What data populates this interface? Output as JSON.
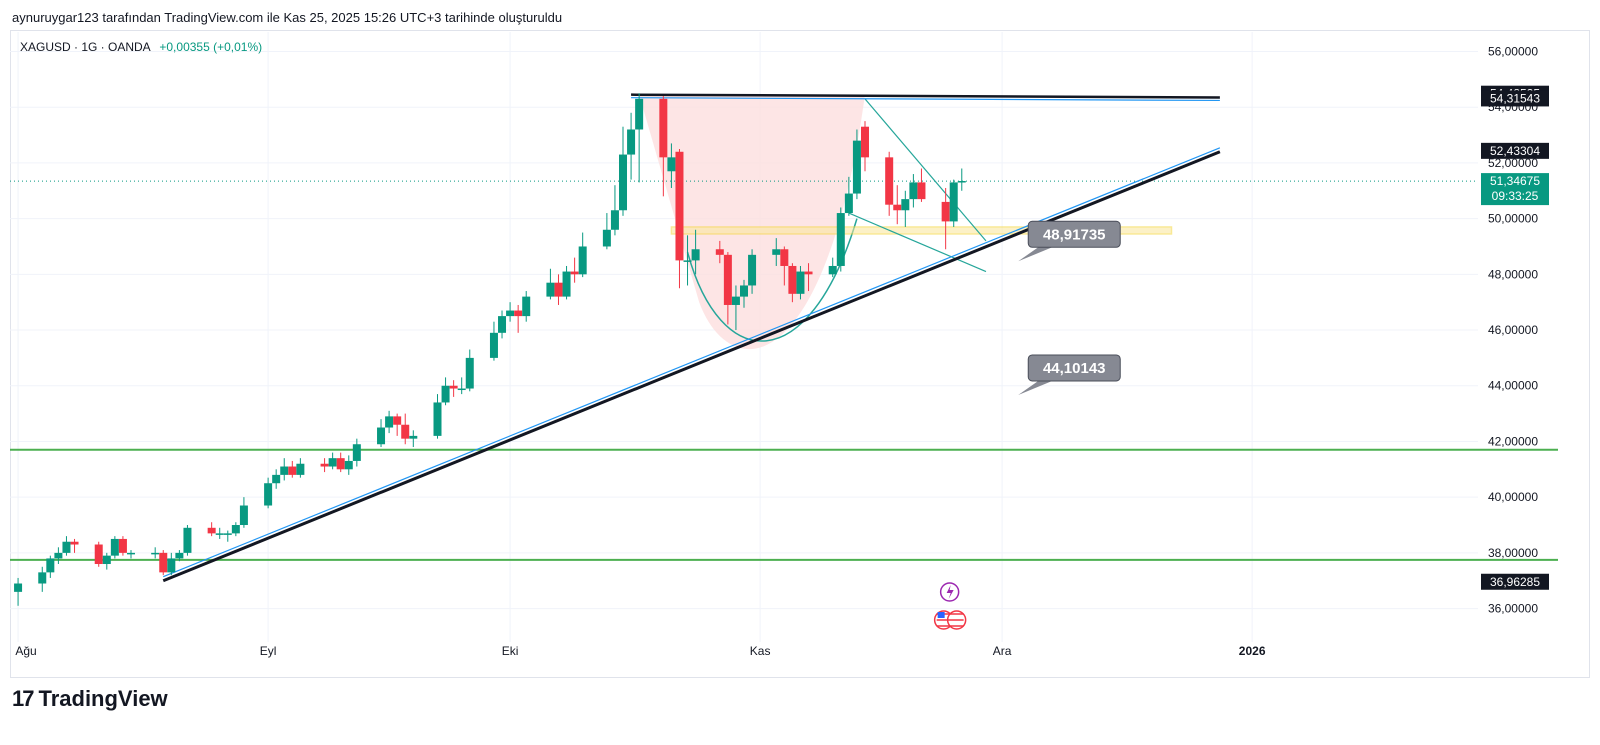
{
  "header": {
    "text": "aynuruygar123 tarafından TradingView.com ile Kas 25, 2025 15:26 UTC+3 tarihinde oluşturuldu"
  },
  "symbol": {
    "name": "XAGUSD · 1G · OANDA",
    "change": "+0,00355 (+0,01%)"
  },
  "footer": {
    "logo_mark": "17",
    "logo_text": "TradingView"
  },
  "colors": {
    "up": "#089981",
    "down": "#f23645",
    "trend": "#131722",
    "channel": "#2196f3",
    "support": "#4caf50",
    "zone": "#fbe79a",
    "cup": "#fcdede",
    "callout": "#868993"
  },
  "chart_data": {
    "type": "candlestick",
    "y_axis": {
      "min": 34.8,
      "max": 56.7,
      "tick_labels": [
        "56,00000",
        "54,00000",
        "52,00000",
        "50,00000",
        "48,00000",
        "46,00000",
        "44,00000",
        "42,00000",
        "40,00000",
        "38,00000",
        "36,00000"
      ],
      "tick_values": [
        56,
        54,
        52,
        50,
        48,
        46,
        44,
        42,
        40,
        38,
        36
      ]
    },
    "x_axis": {
      "labels": [
        "Ağu",
        "Eyl",
        "Eki",
        "Kas",
        "Ara",
        "2026"
      ],
      "label_dates": [
        "2025-08-01",
        "2025-09-01",
        "2025-10-01",
        "2025-11-01",
        "2025-12-01",
        "2026-01-01"
      ],
      "range": [
        "2025-07-31",
        "2026-01-29"
      ]
    },
    "price_tags": [
      {
        "text": "54,48525",
        "value": 54.485,
        "style": "dark"
      },
      {
        "text": "54,31543",
        "value": 54.315,
        "style": "dark"
      },
      {
        "text": "52,43304",
        "value": 52.433,
        "style": "dark"
      },
      {
        "text": "51,34675",
        "value": 51.347,
        "style": "last",
        "sub": "09:33:25"
      },
      {
        "text": "36,96285",
        "value": 36.963,
        "style": "dark"
      }
    ],
    "last_price": 51.347,
    "callouts": [
      {
        "text": "48,91735",
        "anchor": [
          "2025-12-03",
          48.9
        ]
      },
      {
        "text": "44,10143",
        "anchor": [
          "2025-12-03",
          44.1
        ]
      }
    ],
    "support_lines": [
      41.7,
      37.75
    ],
    "trendline": {
      "from": [
        "2025-08-19",
        37.0
      ],
      "to": [
        "2025-12-28",
        52.4
      ]
    },
    "resistance": {
      "from": [
        "2025-10-16",
        54.45
      ],
      "to": [
        "2025-12-28",
        54.35
      ]
    },
    "zone": {
      "from": [
        "2025-10-21",
        49.45
      ],
      "to": [
        "2025-12-22",
        49.7
      ]
    },
    "candles": [
      {
        "d": "2025-08-01",
        "o": 36.6,
        "h": 37.1,
        "l": 36.1,
        "c": 36.9
      },
      {
        "d": "2025-08-04",
        "o": 36.9,
        "h": 37.5,
        "l": 36.6,
        "c": 37.3
      },
      {
        "d": "2025-08-05",
        "o": 37.3,
        "h": 37.9,
        "l": 37.1,
        "c": 37.8
      },
      {
        "d": "2025-08-06",
        "o": 37.8,
        "h": 38.2,
        "l": 37.6,
        "c": 38.0
      },
      {
        "d": "2025-08-07",
        "o": 38.0,
        "h": 38.6,
        "l": 37.9,
        "c": 38.4
      },
      {
        "d": "2025-08-08",
        "o": 38.4,
        "h": 38.5,
        "l": 38.0,
        "c": 38.3
      },
      {
        "d": "2025-08-11",
        "o": 38.3,
        "h": 38.4,
        "l": 37.5,
        "c": 37.6
      },
      {
        "d": "2025-08-12",
        "o": 37.6,
        "h": 38.0,
        "l": 37.4,
        "c": 37.9
      },
      {
        "d": "2025-08-13",
        "o": 37.9,
        "h": 38.6,
        "l": 37.8,
        "c": 38.5
      },
      {
        "d": "2025-08-14",
        "o": 38.5,
        "h": 38.6,
        "l": 37.9,
        "c": 38.0
      },
      {
        "d": "2025-08-15",
        "o": 38.0,
        "h": 38.1,
        "l": 37.8,
        "c": 38.0
      },
      {
        "d": "2025-08-18",
        "o": 38.0,
        "h": 38.2,
        "l": 37.8,
        "c": 38.0
      },
      {
        "d": "2025-08-19",
        "o": 38.0,
        "h": 38.1,
        "l": 37.2,
        "c": 37.3
      },
      {
        "d": "2025-08-20",
        "o": 37.3,
        "h": 38.0,
        "l": 37.2,
        "c": 37.8
      },
      {
        "d": "2025-08-21",
        "o": 37.8,
        "h": 38.1,
        "l": 37.7,
        "c": 38.0
      },
      {
        "d": "2025-08-22",
        "o": 38.0,
        "h": 39.0,
        "l": 37.9,
        "c": 38.9
      },
      {
        "d": "2025-08-25",
        "o": 38.9,
        "h": 39.1,
        "l": 38.6,
        "c": 38.7
      },
      {
        "d": "2025-08-26",
        "o": 38.7,
        "h": 38.9,
        "l": 38.5,
        "c": 38.7
      },
      {
        "d": "2025-08-27",
        "o": 38.7,
        "h": 38.8,
        "l": 38.4,
        "c": 38.7
      },
      {
        "d": "2025-08-28",
        "o": 38.7,
        "h": 39.1,
        "l": 38.6,
        "c": 39.0
      },
      {
        "d": "2025-08-29",
        "o": 39.0,
        "h": 40.0,
        "l": 38.9,
        "c": 39.7
      },
      {
        "d": "2025-09-01",
        "o": 39.7,
        "h": 40.7,
        "l": 39.6,
        "c": 40.5
      },
      {
        "d": "2025-09-02",
        "o": 40.5,
        "h": 41.0,
        "l": 40.3,
        "c": 40.8
      },
      {
        "d": "2025-09-03",
        "o": 40.8,
        "h": 41.4,
        "l": 40.6,
        "c": 41.1
      },
      {
        "d": "2025-09-04",
        "o": 41.1,
        "h": 41.3,
        "l": 40.7,
        "c": 40.8
      },
      {
        "d": "2025-09-05",
        "o": 40.8,
        "h": 41.4,
        "l": 40.7,
        "c": 41.2
      },
      {
        "d": "2025-09-08",
        "o": 41.2,
        "h": 41.4,
        "l": 40.9,
        "c": 41.1
      },
      {
        "d": "2025-09-09",
        "o": 41.1,
        "h": 41.6,
        "l": 41.0,
        "c": 41.4
      },
      {
        "d": "2025-09-10",
        "o": 41.4,
        "h": 41.6,
        "l": 40.9,
        "c": 41.0
      },
      {
        "d": "2025-09-11",
        "o": 41.0,
        "h": 41.5,
        "l": 40.8,
        "c": 41.3
      },
      {
        "d": "2025-09-12",
        "o": 41.3,
        "h": 42.1,
        "l": 41.1,
        "c": 41.9
      },
      {
        "d": "2025-09-15",
        "o": 41.9,
        "h": 42.8,
        "l": 41.8,
        "c": 42.5
      },
      {
        "d": "2025-09-16",
        "o": 42.5,
        "h": 43.1,
        "l": 42.3,
        "c": 42.9
      },
      {
        "d": "2025-09-17",
        "o": 42.9,
        "h": 43.0,
        "l": 42.2,
        "c": 42.6
      },
      {
        "d": "2025-09-18",
        "o": 42.6,
        "h": 43.0,
        "l": 41.9,
        "c": 42.1
      },
      {
        "d": "2025-09-19",
        "o": 42.1,
        "h": 42.4,
        "l": 41.8,
        "c": 42.2
      },
      {
        "d": "2025-09-22",
        "o": 42.2,
        "h": 43.7,
        "l": 42.1,
        "c": 43.4
      },
      {
        "d": "2025-09-23",
        "o": 43.4,
        "h": 44.3,
        "l": 43.3,
        "c": 44.0
      },
      {
        "d": "2025-09-24",
        "o": 44.0,
        "h": 44.2,
        "l": 43.6,
        "c": 43.9
      },
      {
        "d": "2025-09-25",
        "o": 43.9,
        "h": 44.3,
        "l": 43.7,
        "c": 43.9
      },
      {
        "d": "2025-09-26",
        "o": 43.9,
        "h": 45.3,
        "l": 43.8,
        "c": 45.0
      },
      {
        "d": "2025-09-29",
        "o": 45.0,
        "h": 46.3,
        "l": 44.9,
        "c": 45.9
      },
      {
        "d": "2025-09-30",
        "o": 45.9,
        "h": 46.7,
        "l": 45.7,
        "c": 46.5
      },
      {
        "d": "2025-10-01",
        "o": 46.5,
        "h": 47.0,
        "l": 46.3,
        "c": 46.7
      },
      {
        "d": "2025-10-02",
        "o": 46.7,
        "h": 46.9,
        "l": 45.9,
        "c": 46.5
      },
      {
        "d": "2025-10-03",
        "o": 46.5,
        "h": 47.4,
        "l": 46.3,
        "c": 47.2
      },
      {
        "d": "2025-10-06",
        "o": 47.2,
        "h": 48.2,
        "l": 47.1,
        "c": 47.7
      },
      {
        "d": "2025-10-07",
        "o": 47.7,
        "h": 48.0,
        "l": 46.9,
        "c": 47.2
      },
      {
        "d": "2025-10-08",
        "o": 47.2,
        "h": 48.3,
        "l": 47.1,
        "c": 48.1
      },
      {
        "d": "2025-10-09",
        "o": 48.1,
        "h": 48.6,
        "l": 47.7,
        "c": 48.0
      },
      {
        "d": "2025-10-10",
        "o": 48.0,
        "h": 49.5,
        "l": 47.9,
        "c": 49.0
      },
      {
        "d": "2025-10-13",
        "o": 49.0,
        "h": 50.2,
        "l": 48.9,
        "c": 49.6
      },
      {
        "d": "2025-10-14",
        "o": 49.6,
        "h": 51.2,
        "l": 49.4,
        "c": 50.3
      },
      {
        "d": "2025-10-15",
        "o": 50.3,
        "h": 53.3,
        "l": 50.1,
        "c": 52.3
      },
      {
        "d": "2025-10-16",
        "o": 52.3,
        "h": 53.8,
        "l": 51.4,
        "c": 53.2
      },
      {
        "d": "2025-10-17",
        "o": 53.2,
        "h": 54.5,
        "l": 51.3,
        "c": 54.3
      },
      {
        "d": "2025-10-20",
        "o": 54.3,
        "h": 54.4,
        "l": 50.8,
        "c": 52.2
      },
      {
        "d": "2025-10-21",
        "o": 51.7,
        "h": 52.7,
        "l": 51.1,
        "c": 52.2
      },
      {
        "d": "2025-10-22",
        "o": 52.4,
        "h": 52.5,
        "l": 47.5,
        "c": 48.5
      },
      {
        "d": "2025-10-23",
        "o": 48.5,
        "h": 49.4,
        "l": 47.6,
        "c": 48.5
      },
      {
        "d": "2025-10-24",
        "o": 48.5,
        "h": 49.6,
        "l": 48.0,
        "c": 48.9
      },
      {
        "d": "2025-10-27",
        "o": 48.9,
        "h": 49.2,
        "l": 48.4,
        "c": 48.7
      },
      {
        "d": "2025-10-28",
        "o": 48.7,
        "h": 48.8,
        "l": 46.2,
        "c": 46.9
      },
      {
        "d": "2025-10-29",
        "o": 46.9,
        "h": 47.6,
        "l": 46.0,
        "c": 47.2
      },
      {
        "d": "2025-10-30",
        "o": 47.2,
        "h": 47.8,
        "l": 46.8,
        "c": 47.6
      },
      {
        "d": "2025-10-31",
        "o": 47.6,
        "h": 48.9,
        "l": 47.3,
        "c": 48.7
      },
      {
        "d": "2025-11-03",
        "o": 48.7,
        "h": 49.3,
        "l": 48.3,
        "c": 48.9
      },
      {
        "d": "2025-11-04",
        "o": 48.9,
        "h": 49.0,
        "l": 47.6,
        "c": 48.3
      },
      {
        "d": "2025-11-05",
        "o": 48.3,
        "h": 48.4,
        "l": 47.0,
        "c": 47.3
      },
      {
        "d": "2025-11-06",
        "o": 47.3,
        "h": 48.3,
        "l": 47.1,
        "c": 48.1
      },
      {
        "d": "2025-11-07",
        "o": 48.1,
        "h": 48.4,
        "l": 47.4,
        "c": 48.0
      },
      {
        "d": "2025-11-10",
        "o": 48.0,
        "h": 48.6,
        "l": 47.9,
        "c": 48.3
      },
      {
        "d": "2025-11-11",
        "o": 48.3,
        "h": 50.4,
        "l": 48.1,
        "c": 50.2
      },
      {
        "d": "2025-11-12",
        "o": 50.2,
        "h": 51.5,
        "l": 50.1,
        "c": 50.9
      },
      {
        "d": "2025-11-13",
        "o": 50.9,
        "h": 53.2,
        "l": 50.7,
        "c": 52.8
      },
      {
        "d": "2025-11-14",
        "o": 53.3,
        "h": 53.5,
        "l": 51.7,
        "c": 52.2
      },
      {
        "d": "2025-11-17",
        "o": 52.2,
        "h": 52.4,
        "l": 50.1,
        "c": 50.5
      },
      {
        "d": "2025-11-18",
        "o": 50.5,
        "h": 51.2,
        "l": 49.8,
        "c": 50.3
      },
      {
        "d": "2025-11-19",
        "o": 50.3,
        "h": 51.0,
        "l": 49.7,
        "c": 50.7
      },
      {
        "d": "2025-11-20",
        "o": 50.7,
        "h": 51.6,
        "l": 50.4,
        "c": 51.3
      },
      {
        "d": "2025-11-21",
        "o": 51.3,
        "h": 51.8,
        "l": 50.6,
        "c": 50.7
      },
      {
        "d": "2025-11-24",
        "o": 50.6,
        "h": 51.1,
        "l": 48.9,
        "c": 49.9
      },
      {
        "d": "2025-11-25",
        "o": 49.9,
        "h": 51.4,
        "l": 49.7,
        "c": 51.3
      },
      {
        "d": "2025-11-26",
        "o": 51.3,
        "h": 51.8,
        "l": 51.0,
        "c": 51.35
      }
    ]
  }
}
